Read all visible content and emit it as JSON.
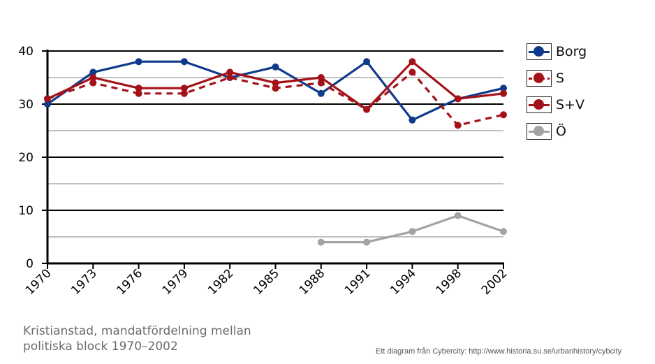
{
  "chart_data": {
    "type": "line",
    "title": "",
    "xlabel": "",
    "ylabel": "",
    "categories": [
      "1970",
      "1973",
      "1976",
      "1979",
      "1982",
      "1985",
      "1988",
      "1991",
      "1994",
      "1998",
      "2002"
    ],
    "ylim": [
      0,
      40
    ],
    "yticks": [
      0,
      10,
      20,
      30,
      40
    ],
    "minor_gridlines": [
      5,
      15,
      25,
      35
    ],
    "series": [
      {
        "name": "Borg",
        "color": "#0f3a8c",
        "style": "solid",
        "values": [
          30,
          36,
          38,
          38,
          35,
          37,
          32,
          38,
          27,
          31,
          33
        ]
      },
      {
        "name": "S",
        "color": "#a31219",
        "style": "dashed",
        "values": [
          31,
          34,
          32,
          32,
          35,
          33,
          34,
          29,
          36,
          26,
          28
        ]
      },
      {
        "name": "S+V",
        "color": "#a31219",
        "style": "solid",
        "values": [
          31,
          35,
          33,
          33,
          36,
          34,
          35,
          29,
          38,
          31,
          32
        ]
      },
      {
        "name": "Ö",
        "color": "#a3a3a3",
        "style": "solid",
        "values": [
          null,
          null,
          null,
          null,
          null,
          null,
          4,
          4,
          6,
          9,
          6
        ]
      }
    ],
    "legend_position": "right"
  },
  "caption": {
    "line1": "Kristianstad, mandatfördelning mellan",
    "line2": "politiska block 1970–2002"
  },
  "credit": "Ett diagram från Cybercity: http://www.historia.su.se/urbanhistory/cybcity"
}
